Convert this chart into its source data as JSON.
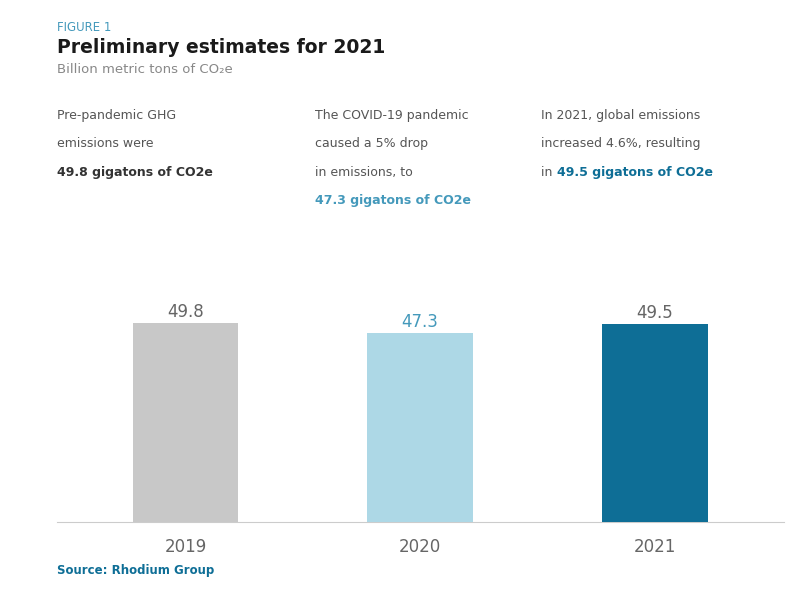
{
  "figure_label": "FIGURE 1",
  "title": "Preliminary estimates for 2021",
  "subtitle": "Billion metric tons of CO₂e",
  "categories": [
    "2019",
    "2020",
    "2021"
  ],
  "values": [
    49.8,
    47.3,
    49.5
  ],
  "bar_colors": [
    "#c8c8c8",
    "#add8e6",
    "#0e6e96"
  ],
  "value_colors": [
    "#666666",
    "#4499bb",
    "#666666"
  ],
  "ann_col1": [
    {
      "text": "Pre-pandemic GHG",
      "bold": false,
      "color": "#555555"
    },
    {
      "text": "emissions were",
      "bold": false,
      "color": "#555555"
    },
    {
      "text": "49.8 gigatons of CO2e",
      "bold": true,
      "color": "#333333"
    }
  ],
  "ann_col2": [
    {
      "text": "The COVID-19 pandemic",
      "bold": false,
      "color": "#555555"
    },
    {
      "text": "caused a 5% drop",
      "bold": false,
      "color": "#555555"
    },
    {
      "text": "in emissions, to",
      "bold": false,
      "color": "#555555"
    },
    {
      "text": "47.3 gigatons of CO2e",
      "bold": true,
      "color": "#4499bb"
    }
  ],
  "ann_col3_part1": [
    {
      "text": "In 2021, global emissions",
      "bold": false,
      "color": "#555555"
    },
    {
      "text": "increased 4.6%, resulting",
      "bold": false,
      "color": "#555555"
    },
    {
      "text": "in ",
      "bold": false,
      "color": "#555555",
      "inline_bold": "49.5 gigatons of CO2e",
      "inline_color": "#0e6e96"
    }
  ],
  "source_text": "Source: Rhodium Group",
  "source_color": "#0e6e96",
  "background_color": "#ffffff",
  "figure_label_color": "#4499bb",
  "title_color": "#1a1a1a",
  "subtitle_color": "#888888",
  "ylim": [
    0,
    56
  ],
  "bar_width": 0.45
}
